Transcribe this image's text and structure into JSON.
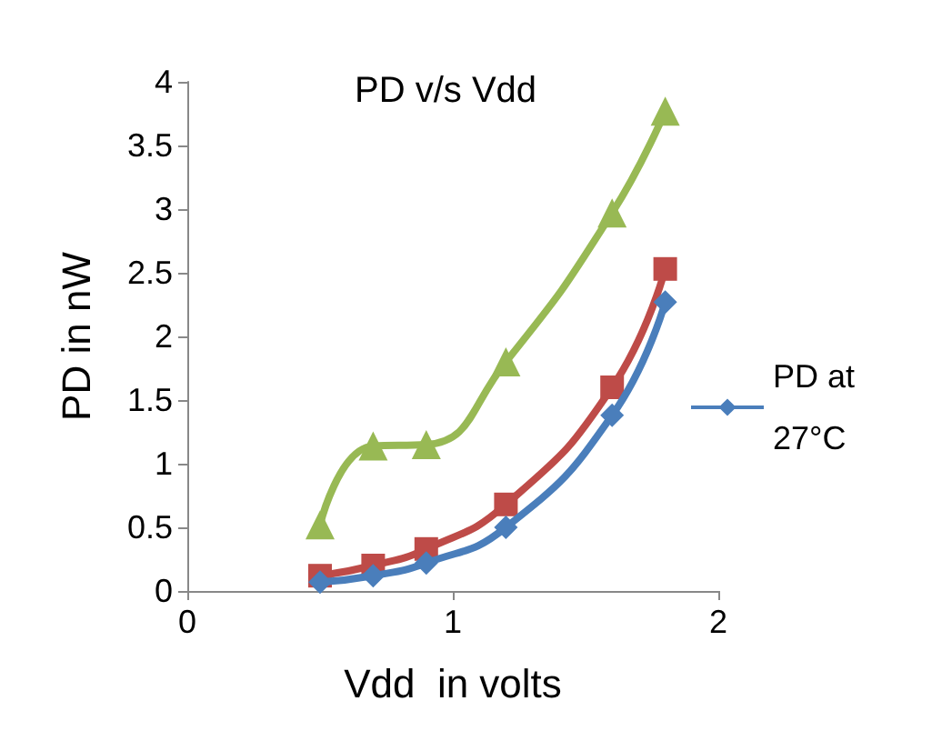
{
  "chart_data": {
    "type": "line",
    "title": "PD v/s Vdd",
    "xlabel": "Vdd  in volts",
    "ylabel": "PD in nW",
    "x": [
      0.5,
      0.7,
      0.9,
      1.2,
      1.6,
      1.8
    ],
    "series": [
      {
        "name": "PD at 27°C",
        "color": "#4a7ebb",
        "marker": "diamond",
        "values": [
          0.07,
          0.12,
          0.22,
          0.5,
          1.38,
          2.27
        ]
      },
      {
        "color": "#be4b48",
        "marker": "square",
        "values": [
          0.12,
          0.2,
          0.33,
          0.68,
          1.6,
          2.53
        ]
      },
      {
        "color": "#98b954",
        "marker": "triangle",
        "values": [
          0.52,
          1.14,
          1.15,
          1.8,
          2.97,
          3.77
        ]
      }
    ],
    "xlim": [
      0,
      2
    ],
    "xticks": [
      0,
      1,
      2
    ],
    "ylim": [
      0,
      4
    ],
    "yticks": [
      0,
      0.5,
      1,
      1.5,
      2,
      2.5,
      3,
      3.5,
      4
    ],
    "grid": false,
    "legend": "right"
  }
}
